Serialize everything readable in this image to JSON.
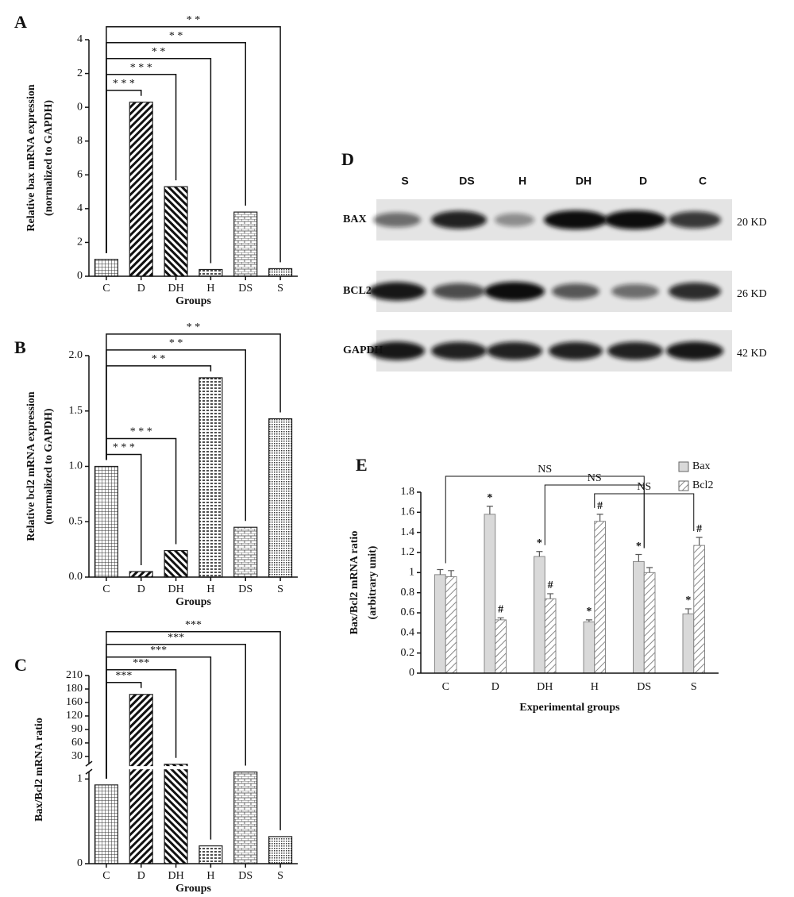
{
  "chart_data": [
    {
      "panel": "A",
      "type": "bar",
      "ylabel": [
        "Relative bax mRNA expression",
        "(normalized to GAPDH)"
      ],
      "xlabel": "Groups",
      "categories": [
        "C",
        "D",
        "DH",
        "H",
        "DS",
        "S"
      ],
      "values": [
        1,
        10.3,
        5.3,
        0.4,
        3.8,
        0.45
      ],
      "color": "#222222",
      "ylim": [
        0,
        14
      ],
      "yticks": [
        0,
        2,
        4,
        6,
        8,
        {
          "value": 10,
          "label": "0"
        },
        {
          "value": 12,
          "label": "2"
        },
        {
          "value": 14,
          "label": "4"
        }
      ],
      "significance": [
        {
          "label": "* * *",
          "groups": [
            "C",
            "D"
          ]
        },
        {
          "label": "* * *",
          "groups": [
            "C",
            "DH"
          ]
        },
        {
          "label": "* *",
          "groups": [
            "C",
            "H"
          ]
        },
        {
          "label": "* *",
          "groups": [
            "C",
            "DS"
          ]
        },
        {
          "label": "* *",
          "groups": [
            "C",
            "S"
          ]
        }
      ]
    },
    {
      "panel": "B",
      "type": "bar",
      "ylabel": [
        "Relative bcl2 mRNA expression",
        "(normalized to GAPDH)"
      ],
      "xlabel": "Groups",
      "categories": [
        "C",
        "D",
        "DH",
        "H",
        "DS",
        "S"
      ],
      "values": [
        1.0,
        0.05,
        0.24,
        1.8,
        0.45,
        1.43
      ],
      "color": "#222222",
      "ylim": [
        0,
        2
      ],
      "yticks": [
        {
          "value": 0,
          "label": "0.0"
        },
        {
          "value": 0.5,
          "label": "0.5"
        },
        {
          "value": 1,
          "label": "1.0"
        },
        {
          "value": 1.5,
          "label": "1.5"
        },
        {
          "value": 2,
          "label": "2.0"
        }
      ],
      "significance": [
        {
          "label": "* * *",
          "groups": [
            "C",
            "D"
          ]
        },
        {
          "label": "* * *",
          "groups": [
            "C",
            "DH"
          ]
        },
        {
          "label": "* *",
          "groups": [
            "C",
            "H"
          ]
        },
        {
          "label": "* *",
          "groups": [
            "C",
            "DS"
          ]
        },
        {
          "label": "* *",
          "groups": [
            "C",
            "S"
          ]
        }
      ]
    },
    {
      "panel": "C",
      "type": "bar",
      "ylabel": [
        "Bax/Bcl2 mRNA ratio"
      ],
      "xlabel": "Groups",
      "categories": [
        "C",
        "D",
        "DH",
        "H",
        "DS",
        "S"
      ],
      "values": [
        0.93,
        172,
        20,
        0.21,
        10,
        0.32
      ],
      "color": "#222222",
      "ylim": [
        0,
        210
      ],
      "yticks": [
        0,
        1,
        30,
        60,
        90,
        120,
        160,
        180,
        210
      ],
      "axis_break": true,
      "significance": [
        {
          "label": "***",
          "groups": [
            "C",
            "D"
          ]
        },
        {
          "label": "***",
          "groups": [
            "C",
            "DH"
          ]
        },
        {
          "label": "***",
          "groups": [
            "C",
            "H"
          ]
        },
        {
          "label": "***",
          "groups": [
            "C",
            "DS"
          ]
        },
        {
          "label": "***",
          "groups": [
            "C",
            "S"
          ]
        }
      ]
    },
    {
      "panel": "E",
      "type": "bar",
      "ylabel": [
        "Bax/Bcl2 mRNA ratio",
        "(arbitrary unit)"
      ],
      "xlabel": "Experimental groups",
      "categories": [
        "C",
        "D",
        "DH",
        "H",
        "DS",
        "S"
      ],
      "series": [
        {
          "name": "Bax",
          "color": "#d9d9d9",
          "values": [
            0.98,
            1.58,
            1.16,
            0.51,
            1.11,
            0.59
          ],
          "errors": [
            0.05,
            0.08,
            0.05,
            0.02,
            0.07,
            0.05
          ],
          "marks": [
            null,
            "*",
            "*",
            "*",
            "*",
            "*"
          ]
        },
        {
          "name": "Bcl2",
          "color": "#ffffff",
          "values": [
            0.96,
            0.53,
            0.74,
            1.51,
            1.0,
            1.27
          ],
          "errors": [
            0.06,
            0.02,
            0.05,
            0.07,
            0.05,
            0.08
          ],
          "marks": [
            null,
            "#",
            "#",
            "#",
            null,
            "#"
          ]
        }
      ],
      "ylim": [
        0,
        1.8
      ],
      "yticks": [
        0,
        0.2,
        0.4,
        0.6,
        0.8,
        1,
        1.2,
        1.4,
        1.6,
        1.8
      ],
      "legend": "top-right",
      "significance": [
        {
          "label": "NS",
          "groups": [
            "C",
            "DS"
          ]
        },
        {
          "label": "NS",
          "groups": [
            "DH",
            "DS"
          ]
        },
        {
          "label": "NS",
          "groups": [
            "H",
            "S"
          ]
        }
      ]
    }
  ],
  "blot": {
    "panel": "D",
    "lanes": [
      "S",
      "DS",
      "H",
      "DH",
      "D",
      "C"
    ],
    "rows": [
      {
        "name": "BAX",
        "size": "20 KD"
      },
      {
        "name": "BCL2",
        "size": "26 KD"
      },
      {
        "name": "GAPDH",
        "size": "42 KD"
      }
    ]
  }
}
